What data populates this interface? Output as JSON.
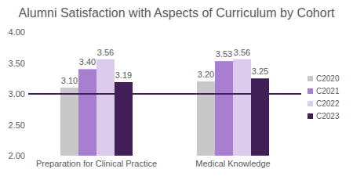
{
  "chart_data": {
    "type": "bar",
    "title": "Alumni Satisfaction with Aspects of Curriculum by Cohort",
    "categories": [
      "Preparation for Clinical Practice",
      "Medical Knowledge"
    ],
    "series": [
      {
        "name": "C2020",
        "color": "#c8c8c8",
        "values": [
          3.1,
          3.2
        ],
        "value_labels": [
          "3.10",
          "3.20"
        ]
      },
      {
        "name": "C2021",
        "color": "#a87fd0",
        "values": [
          3.4,
          3.53
        ],
        "value_labels": [
          "3.40",
          "3.53"
        ]
      },
      {
        "name": "C2022",
        "color": "#dccbec",
        "values": [
          3.56,
          3.56
        ],
        "value_labels": [
          "3.56",
          "3.56"
        ]
      },
      {
        "name": "C2023",
        "color": "#3f1f55",
        "values": [
          3.19,
          3.25
        ],
        "value_labels": [
          "3.19",
          "3.25"
        ]
      }
    ],
    "ylim": [
      2,
      4
    ],
    "yticks": [
      {
        "value": 2,
        "label": "2.00"
      },
      {
        "value": 2.5,
        "label": "2.50"
      },
      {
        "value": 3,
        "label": "3.00"
      },
      {
        "value": 3.5,
        "label": "3.50"
      },
      {
        "value": 4,
        "label": "4.00"
      }
    ],
    "threshold": 3,
    "grid": false,
    "legend": "right",
    "data_labels": true
  }
}
